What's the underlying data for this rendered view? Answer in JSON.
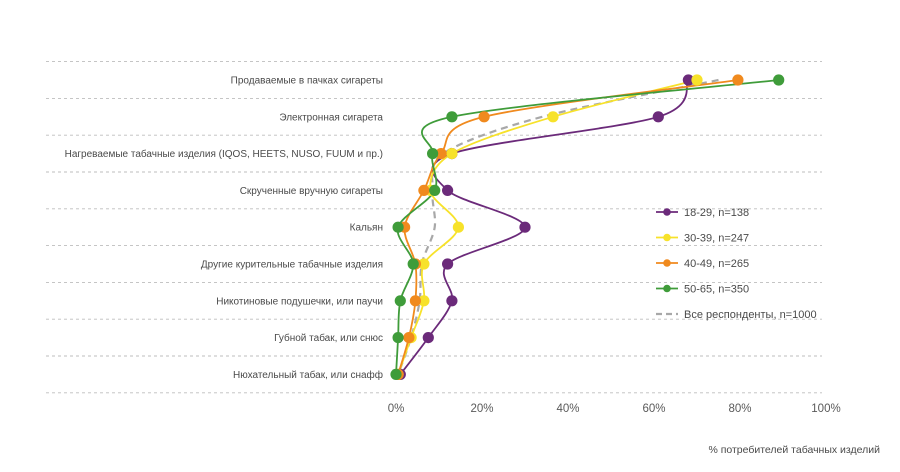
{
  "chart_data": {
    "type": "line",
    "orientation": "horizontal",
    "categories": [
      "Продаваемые в пачках сигареты",
      "Электронная сигарета",
      "Нагреваемые табачные изделия (IQOS, HEETS, NUSO, FUUM и пр.)",
      "Скрученные вручную сигареты",
      "Кальян",
      "Другие курительные табачные изделия",
      "Никотиновые подушечки, или паучи",
      "Губной табак, или снюс",
      "Нюхательный табак, или снафф"
    ],
    "series": [
      {
        "name": "18-29, n=138",
        "color": "#6b2a7a",
        "dashed": false,
        "markers": true,
        "values": [
          68,
          61,
          13,
          12,
          30,
          12,
          13,
          7.5,
          1
        ]
      },
      {
        "name": "30-39, n=247",
        "color": "#f7e22a",
        "dashed": false,
        "markers": true,
        "values": [
          70,
          36.5,
          13,
          8,
          14.5,
          6.5,
          6.5,
          3.5,
          0.5
        ]
      },
      {
        "name": "40-49, n=265",
        "color": "#f08a1e",
        "dashed": false,
        "markers": true,
        "values": [
          79.5,
          20.5,
          10.5,
          6.5,
          2,
          4.5,
          4.5,
          3,
          0.5
        ]
      },
      {
        "name": "50-65, n=350",
        "color": "#3f9c3a",
        "dashed": false,
        "markers": true,
        "values": [
          89,
          13,
          8.5,
          9,
          0.5,
          4,
          1,
          0.5,
          0
        ]
      },
      {
        "name": "Все респонденты, n=1000",
        "color": "#a8a8a8",
        "dashed": true,
        "markers": false,
        "values": [
          75,
          34,
          11,
          8.5,
          9,
          6,
          5.5,
          3.5,
          0.5
        ]
      }
    ],
    "xlim": [
      0,
      100
    ],
    "xticks": [
      "0%",
      "20%",
      "40%",
      "60%",
      "80%",
      "100%"
    ],
    "xlabel": "% потребителей табачных изделий",
    "grid": "horizontal dashed",
    "legend_position": "right"
  }
}
